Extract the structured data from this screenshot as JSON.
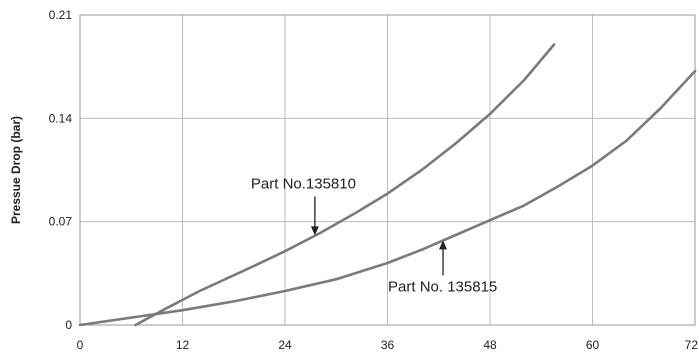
{
  "chart_data": {
    "type": "line",
    "title": "",
    "xlabel": "",
    "ylabel": "Pressue Drop (bar)",
    "xlim": [
      0,
      72
    ],
    "ylim": [
      0,
      0.21
    ],
    "x_ticks": [
      0,
      12,
      24,
      36,
      48,
      60,
      72
    ],
    "y_ticks": [
      0,
      0.07,
      0.14,
      0.21
    ],
    "x_tick_labels": [
      "0",
      "12",
      "24",
      "36",
      "48",
      "60",
      "72"
    ],
    "y_tick_labels": [
      "0",
      "0.07",
      "0.14",
      "0.21"
    ],
    "grid": true,
    "series": [
      {
        "name": "Part No.135810",
        "x": [
          6.5,
          10,
          14,
          20,
          24,
          28,
          32,
          36,
          40,
          44,
          48,
          52,
          55.5
        ],
        "y": [
          0,
          0.011,
          0.023,
          0.039,
          0.05,
          0.062,
          0.075,
          0.089,
          0.105,
          0.123,
          0.143,
          0.166,
          0.19
        ]
      },
      {
        "name": "Part No. 135815",
        "x": [
          0,
          6,
          12,
          18,
          24,
          30,
          36,
          40,
          44,
          48,
          52,
          56,
          60,
          64,
          68,
          72
        ],
        "y": [
          0,
          0.005,
          0.01,
          0.016,
          0.023,
          0.031,
          0.042,
          0.051,
          0.061,
          0.071,
          0.081,
          0.094,
          0.108,
          0.125,
          0.147,
          0.172
        ]
      }
    ],
    "annotations": [
      {
        "text": "Part No.135810",
        "series": 0,
        "arrow_x": 27.5,
        "arrow_y": 0.06
      },
      {
        "text": "Part No. 135815",
        "series": 1,
        "arrow_x": 42.5,
        "arrow_y": 0.058
      }
    ],
    "colors": {
      "line": "#7a7a7a",
      "grid": "#bdbdbd",
      "axis": "#9a9a9a",
      "arrow": "#222222"
    }
  }
}
